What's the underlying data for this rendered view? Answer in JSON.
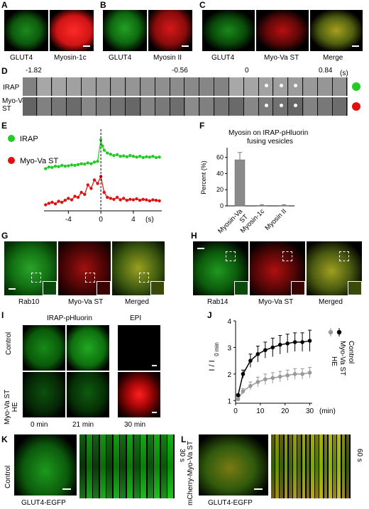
{
  "panels": {
    "A": {
      "letter": "A",
      "labels": [
        "GLUT4",
        "Myosin-1c"
      ]
    },
    "B": {
      "letter": "B",
      "labels": [
        "GLUT4",
        "Myosin II"
      ]
    },
    "C": {
      "letter": "C",
      "labels": [
        "GLUT4",
        "Myo-Va ST",
        "Merge"
      ]
    },
    "D": {
      "letter": "D",
      "times": [
        "-1.82",
        "-0.56",
        "0",
        "0.84"
      ],
      "unit": "(s)",
      "rows": [
        "IRAP",
        "Myo-Va\nST"
      ],
      "row_colors": [
        "#22cc22",
        "#e01010"
      ]
    },
    "E": {
      "letter": "E",
      "legend": [
        "IRAP",
        "Myo-Va ST"
      ],
      "xunit": "(s)"
    },
    "F": {
      "letter": "F",
      "title_line1": "Myosin on IRAP-pHluorin",
      "title_line2": "fusing vesicles"
    },
    "G": {
      "letter": "G",
      "labels": [
        "Rab10",
        "Myo-Va ST",
        "Merged"
      ]
    },
    "H": {
      "letter": "H",
      "labels": [
        "Rab14",
        "Myo-Va ST",
        "Merged"
      ]
    },
    "I": {
      "letter": "I",
      "headers": [
        "IRAP-pHluorin",
        "EPI"
      ],
      "rows": [
        "Control",
        "Myo-Va ST\nHE"
      ],
      "times": [
        "0 min",
        "21 min",
        "30 min"
      ]
    },
    "J": {
      "letter": "J",
      "legend": [
        "Control",
        "Myo-Va ST\nHE"
      ]
    },
    "K": {
      "letter": "K",
      "side": "Control",
      "bottom": "GLUT4-EGFP",
      "time": "30 s"
    },
    "L": {
      "letter": "L",
      "side": "mCherry-Myo-Va ST",
      "bottom": "GLUT4-EGFP",
      "time": "60 s"
    }
  },
  "chart_data": [
    {
      "type": "line",
      "panel": "E",
      "xlabel": "(s)",
      "xticks": [
        -4,
        0,
        4
      ],
      "xlim": [
        -7,
        7.5
      ],
      "series": [
        {
          "name": "IRAP",
          "color": "#22cc22",
          "x": [
            -6.8,
            -6.4,
            -6,
            -5.6,
            -5.2,
            -4.8,
            -4.4,
            -4,
            -3.6,
            -3.2,
            -2.8,
            -2.4,
            -2,
            -1.6,
            -1.2,
            -0.8,
            -0.4,
            0,
            0.2,
            0.4,
            0.8,
            1.2,
            1.6,
            2,
            2.4,
            2.8,
            3.2,
            3.6,
            4,
            4.4,
            4.8,
            5.2,
            5.6,
            6,
            6.4,
            6.8,
            7.2
          ],
          "y": [
            0.3,
            0.34,
            0.33,
            0.36,
            0.35,
            0.38,
            0.36,
            0.37,
            0.39,
            0.38,
            0.4,
            0.42,
            0.41,
            0.44,
            0.42,
            0.46,
            0.48,
            1.0,
            0.85,
            0.75,
            0.68,
            0.65,
            0.62,
            0.64,
            0.6,
            0.61,
            0.59,
            0.62,
            0.6,
            0.58,
            0.6,
            0.57,
            0.59,
            0.58,
            0.6,
            0.57,
            0.58
          ]
        },
        {
          "name": "Myo-Va ST",
          "color": "#e01010",
          "x": [
            -6.8,
            -6.4,
            -6,
            -5.6,
            -5.2,
            -4.8,
            -4.4,
            -4,
            -3.6,
            -3.2,
            -2.8,
            -2.4,
            -2,
            -1.6,
            -1.2,
            -0.8,
            -0.4,
            0,
            0.4,
            0.8,
            1.2,
            1.6,
            2,
            2.4,
            2.8,
            3.2,
            3.6,
            4,
            4.4,
            4.8,
            5.2,
            5.6,
            6,
            6.4,
            6.8,
            7.2
          ],
          "y": [
            0.05,
            0.08,
            0.1,
            0.07,
            0.12,
            0.1,
            0.14,
            0.18,
            0.15,
            0.22,
            0.2,
            0.3,
            0.26,
            0.45,
            0.38,
            0.55,
            0.48,
            0.62,
            0.3,
            0.2,
            0.18,
            0.16,
            0.2,
            0.15,
            0.18,
            0.14,
            0.16,
            0.15,
            0.17,
            0.14,
            0.16,
            0.15,
            0.13,
            0.15,
            0.14,
            0.13
          ]
        }
      ]
    },
    {
      "type": "bar",
      "panel": "F",
      "ylabel": "Percent (%)",
      "categories": [
        "Myosin-Va\nST",
        "Myosin-1c",
        "Myosin II"
      ],
      "values": [
        57,
        0.5,
        0.5
      ],
      "errors": [
        9,
        1,
        1
      ],
      "yticks": [
        0,
        20,
        40,
        60
      ],
      "ylim": [
        0,
        72
      ]
    },
    {
      "type": "line",
      "panel": "J",
      "ylabel": "I / I",
      "ylabel_sub": "0 min",
      "xlabel": "(min)",
      "xticks": [
        0,
        10,
        20,
        30
      ],
      "yticks": [
        1,
        2,
        3,
        4
      ],
      "xlim": [
        0,
        31
      ],
      "ylim": [
        0.9,
        4
      ],
      "series": [
        {
          "name": "Control",
          "color": "#000000",
          "x": [
            1,
            3,
            6,
            9,
            12,
            15,
            18,
            21,
            24,
            27,
            30
          ],
          "y": [
            1.2,
            2.0,
            2.5,
            2.75,
            2.9,
            3.0,
            3.1,
            3.15,
            3.2,
            3.2,
            3.25
          ],
          "err": [
            0.05,
            0.15,
            0.25,
            0.3,
            0.3,
            0.35,
            0.35,
            0.35,
            0.35,
            0.35,
            0.4
          ]
        },
        {
          "name": "Myo-Va ST\nHE",
          "color": "#999999",
          "x": [
            1,
            3,
            6,
            9,
            12,
            15,
            18,
            21,
            24,
            27,
            30
          ],
          "y": [
            1.05,
            1.35,
            1.55,
            1.7,
            1.8,
            1.85,
            1.9,
            1.95,
            2.0,
            2.0,
            2.05
          ],
          "err": [
            0.05,
            0.1,
            0.15,
            0.18,
            0.2,
            0.2,
            0.2,
            0.2,
            0.2,
            0.2,
            0.2
          ]
        }
      ]
    }
  ]
}
